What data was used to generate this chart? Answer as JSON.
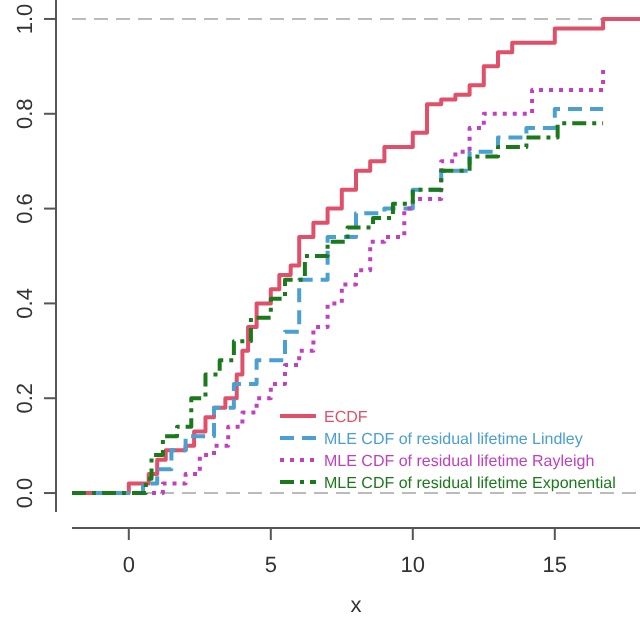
{
  "chart_data": {
    "type": "step",
    "xlabel": "x",
    "xlim": [
      -2,
      18
    ],
    "xticks": [
      0,
      5,
      10,
      15
    ],
    "ylim": [
      -0.04,
      1.04
    ],
    "yticks": [
      {
        "value": 0,
        "label": "0.0"
      },
      {
        "value": 0.2,
        "label": "0.2"
      },
      {
        "value": 0.4,
        "label": "0.4"
      },
      {
        "value": 0.6,
        "label": "0.6"
      },
      {
        "value": 0.8,
        "label": "0.8"
      },
      {
        "value": 1,
        "label": "1.0"
      }
    ],
    "legend": "bottom right",
    "grid": false,
    "ref_lines": [
      {
        "axis": "y",
        "value": 0,
        "color": "#bbbbbb",
        "line_style": "dashed"
      },
      {
        "axis": "y",
        "value": 1,
        "color": "#bbbbbb",
        "line_style": "dashed"
      }
    ],
    "series": [
      {
        "name": "ECDF",
        "color": "#e0506a",
        "line_style": "solid",
        "x": [
          -2,
          0,
          0.7,
          1,
          1.3,
          2,
          2.3,
          2.7,
          3,
          3.4,
          3.8,
          4,
          4.2,
          4.5,
          5,
          5.3,
          5.7,
          6,
          6.5,
          7,
          7.5,
          8,
          8.5,
          9,
          10,
          10.5,
          11,
          11.5,
          12,
          12.5,
          13,
          13.5,
          15,
          16.7,
          18
        ],
        "values": [
          0,
          0.02,
          0.04,
          0.07,
          0.09,
          0.1,
          0.13,
          0.16,
          0.18,
          0.2,
          0.25,
          0.3,
          0.35,
          0.4,
          0.43,
          0.46,
          0.48,
          0.54,
          0.57,
          0.6,
          0.64,
          0.68,
          0.7,
          0.73,
          0.76,
          0.82,
          0.83,
          0.84,
          0.86,
          0.9,
          0.93,
          0.95,
          0.98,
          1,
          1
        ]
      },
      {
        "name": "MLE CDF of residual lifetime Lindley",
        "color": "#4aa0d0",
        "line_style": "dashed",
        "x": [
          -2,
          0.5,
          1,
          1.5,
          2,
          3,
          3.7,
          4.5,
          5.5,
          6,
          7,
          8,
          9,
          10,
          11,
          12,
          13,
          14,
          15,
          16.7
        ],
        "values": [
          0,
          0.02,
          0.05,
          0.09,
          0.12,
          0.18,
          0.23,
          0.28,
          0.34,
          0.45,
          0.54,
          0.59,
          0.6,
          0.64,
          0.68,
          0.72,
          0.75,
          0.77,
          0.81,
          0.81
        ]
      },
      {
        "name": "MLE CDF of residual lifetime Rayleigh",
        "color": "#c040c0",
        "line_style": "dotted",
        "x": [
          -2,
          1.2,
          2,
          2.5,
          3,
          3.5,
          4,
          4.5,
          5,
          5.5,
          6,
          6.5,
          7,
          7.5,
          8,
          8.5,
          9,
          9.7,
          10,
          11,
          11.5,
          12,
          12.5,
          14,
          14.2,
          16.6,
          16.7
        ],
        "values": [
          0,
          0.02,
          0.04,
          0.08,
          0.1,
          0.14,
          0.17,
          0.2,
          0.23,
          0.27,
          0.3,
          0.35,
          0.4,
          0.44,
          0.47,
          0.53,
          0.54,
          0.6,
          0.62,
          0.7,
          0.72,
          0.77,
          0.8,
          0.8,
          0.85,
          0.85,
          0.9
        ]
      },
      {
        "name": "MLE CDF of residual lifetime Exponential",
        "color": "#1a7a1a",
        "line_style": "dashdot",
        "x": [
          -2,
          0.6,
          0.8,
          1.2,
          1.7,
          2.2,
          2.7,
          3.2,
          3.7,
          4.3,
          5,
          5.5,
          6.2,
          7,
          7.7,
          8.6,
          9.3,
          10,
          11,
          12,
          13,
          14,
          15.1,
          16.7
        ],
        "values": [
          0,
          0.03,
          0.08,
          0.12,
          0.14,
          0.2,
          0.25,
          0.28,
          0.32,
          0.37,
          0.41,
          0.45,
          0.5,
          0.53,
          0.56,
          0.58,
          0.61,
          0.64,
          0.68,
          0.71,
          0.73,
          0.75,
          0.78,
          0.78
        ]
      }
    ]
  }
}
